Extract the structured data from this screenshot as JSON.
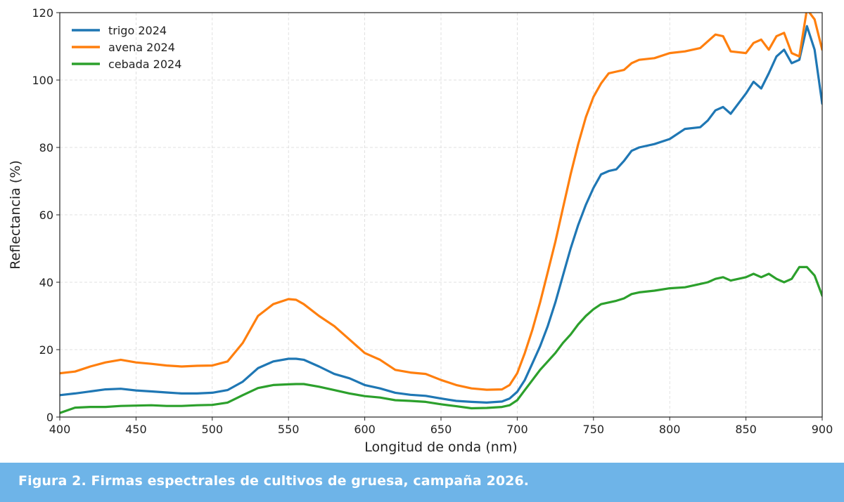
{
  "chart_data": {
    "type": "line",
    "xlabel": "Longitud de onda (nm)",
    "ylabel": "Reflectancia (%)",
    "xlim": [
      400,
      900
    ],
    "ylim": [
      0,
      120
    ],
    "x_ticks": [
      400,
      450,
      500,
      550,
      600,
      650,
      700,
      750,
      800,
      850,
      900
    ],
    "y_ticks": [
      0,
      20,
      40,
      60,
      80,
      100,
      120
    ],
    "grid": true,
    "legend_position": "top-left",
    "series": [
      {
        "name": "trigo 2024",
        "color": "#1f77b4",
        "x": [
          400,
          410,
          420,
          430,
          440,
          450,
          460,
          470,
          480,
          490,
          500,
          510,
          520,
          530,
          540,
          550,
          555,
          560,
          570,
          580,
          590,
          600,
          610,
          620,
          630,
          640,
          650,
          660,
          670,
          680,
          690,
          695,
          700,
          705,
          710,
          715,
          720,
          725,
          730,
          735,
          740,
          745,
          750,
          755,
          760,
          765,
          770,
          775,
          780,
          790,
          800,
          810,
          820,
          825,
          830,
          835,
          840,
          850,
          855,
          860,
          865,
          870,
          875,
          880,
          885,
          890,
          895,
          900
        ],
        "y": [
          6.5,
          7,
          7.6,
          8.2,
          8.4,
          7.9,
          7.6,
          7.3,
          7.0,
          7.0,
          7.2,
          8.0,
          10.5,
          14.5,
          16.5,
          17.3,
          17.3,
          17.0,
          15,
          12.8,
          11.5,
          9.5,
          8.5,
          7.2,
          6.6,
          6.3,
          5.5,
          4.8,
          4.5,
          4.3,
          4.6,
          5.5,
          7.5,
          11,
          16,
          21,
          27,
          34,
          42,
          50,
          57,
          63,
          68,
          72,
          73,
          73.5,
          76,
          79,
          80,
          81,
          82.5,
          85.5,
          86,
          88,
          91,
          92,
          90,
          96,
          99.5,
          97.5,
          102,
          107,
          109,
          105,
          106,
          116,
          109,
          93
        ]
      },
      {
        "name": "avena 2024",
        "color": "#ff7f0e",
        "x": [
          400,
          410,
          420,
          430,
          440,
          450,
          460,
          470,
          480,
          490,
          500,
          510,
          520,
          530,
          540,
          550,
          555,
          560,
          570,
          580,
          590,
          600,
          610,
          620,
          630,
          640,
          650,
          660,
          670,
          680,
          690,
          695,
          700,
          705,
          710,
          715,
          720,
          725,
          730,
          735,
          740,
          745,
          750,
          755,
          760,
          765,
          770,
          775,
          780,
          790,
          800,
          810,
          820,
          825,
          830,
          835,
          840,
          850,
          855,
          860,
          865,
          870,
          875,
          880,
          885,
          890,
          895,
          900
        ],
        "y": [
          13,
          13.5,
          15.0,
          16.2,
          17.0,
          16.2,
          15.8,
          15.3,
          15.0,
          15.2,
          15.3,
          16.5,
          22,
          30,
          33.5,
          35,
          34.8,
          33.5,
          30,
          27,
          23,
          19,
          17,
          14,
          13.2,
          12.8,
          11,
          9.5,
          8.5,
          8.1,
          8.2,
          9.5,
          13,
          19,
          26,
          34,
          43,
          52,
          62,
          72,
          81,
          89,
          95,
          99,
          102,
          102.5,
          103,
          105,
          106,
          106.5,
          108,
          108.5,
          109.5,
          111.5,
          113.5,
          113,
          108.5,
          108,
          111,
          112,
          109,
          113,
          114,
          108,
          107,
          121,
          118,
          109
        ]
      },
      {
        "name": "cebada 2024",
        "color": "#2ca02c",
        "x": [
          400,
          410,
          420,
          430,
          440,
          450,
          460,
          470,
          480,
          490,
          500,
          510,
          520,
          530,
          540,
          550,
          555,
          560,
          570,
          580,
          590,
          600,
          610,
          620,
          630,
          640,
          650,
          660,
          670,
          680,
          690,
          695,
          700,
          705,
          710,
          715,
          720,
          725,
          730,
          735,
          740,
          745,
          750,
          755,
          760,
          765,
          770,
          775,
          780,
          790,
          800,
          810,
          820,
          825,
          830,
          835,
          840,
          850,
          855,
          860,
          865,
          870,
          875,
          880,
          885,
          890,
          895,
          900
        ],
        "y": [
          1.2,
          2.8,
          3.0,
          3.0,
          3.3,
          3.4,
          3.5,
          3.3,
          3.3,
          3.5,
          3.6,
          4.3,
          6.5,
          8.6,
          9.5,
          9.7,
          9.8,
          9.8,
          9,
          8.0,
          7.0,
          6.2,
          5.8,
          5.0,
          4.8,
          4.5,
          3.8,
          3.2,
          2.6,
          2.7,
          3.0,
          3.5,
          5,
          8,
          11,
          14,
          16.5,
          19,
          22,
          24.5,
          27.5,
          30,
          32,
          33.5,
          34,
          34.5,
          35.2,
          36.5,
          37,
          37.5,
          38.2,
          38.5,
          39.5,
          40,
          41,
          41.5,
          40.5,
          41.5,
          42.5,
          41.5,
          42.5,
          41,
          40,
          41,
          44.5,
          44.5,
          42,
          36
        ]
      }
    ]
  },
  "caption": {
    "text": "Figura 2. Firmas espectrales de cultivos de gruesa, campaña 2026."
  }
}
